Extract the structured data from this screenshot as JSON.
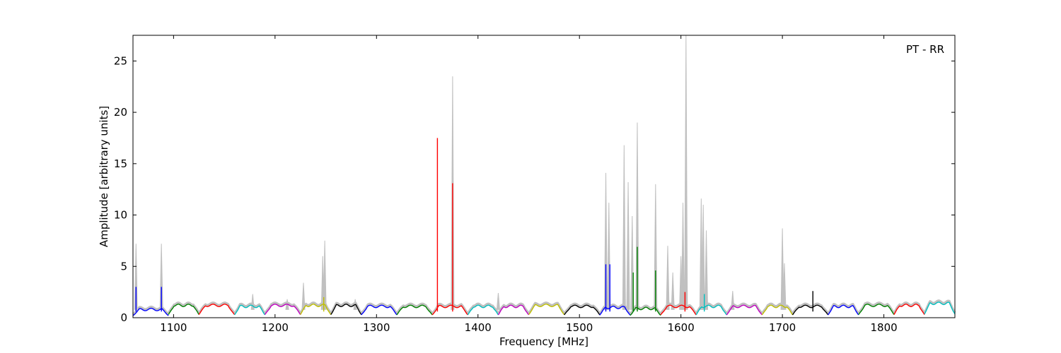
{
  "chart_data": {
    "type": "line",
    "title": "",
    "annotation": "PT - RR",
    "xlabel": "Frequency [MHz]",
    "ylabel": "Amplitude [arbitrary units]",
    "xlim": [
      1060,
      1870
    ],
    "ylim": [
      0,
      27.5
    ],
    "xticks": [
      1100,
      1200,
      1300,
      1400,
      1500,
      1600,
      1700,
      1800
    ],
    "yticks": [
      0,
      5,
      10,
      15,
      20,
      25
    ],
    "grid": false,
    "background_color": "#c0c0c0",
    "background_peaks": [
      [
        1063,
        7.2
      ],
      [
        1088,
        7.2
      ],
      [
        1178,
        2.3
      ],
      [
        1212,
        1.8
      ],
      [
        1228,
        3.4
      ],
      [
        1247,
        6.0
      ],
      [
        1249,
        7.5
      ],
      [
        1279,
        1.8
      ],
      [
        1375,
        23.5
      ],
      [
        1420,
        2.4
      ],
      [
        1526,
        14.1
      ],
      [
        1529,
        11.2
      ],
      [
        1544,
        16.8
      ],
      [
        1548,
        13.2
      ],
      [
        1552,
        9.9
      ],
      [
        1557,
        19.0
      ],
      [
        1575,
        13.0
      ],
      [
        1587,
        7.0
      ],
      [
        1592,
        4.4
      ],
      [
        1600,
        6.0
      ],
      [
        1602,
        11.2
      ],
      [
        1605,
        27.5
      ],
      [
        1620,
        11.6
      ],
      [
        1622,
        11.0
      ],
      [
        1625,
        8.5
      ],
      [
        1651,
        2.6
      ],
      [
        1700,
        8.7
      ],
      [
        1702,
        5.3
      ]
    ],
    "bands": [
      {
        "color": "#0000ff",
        "range": [
          1060,
          1095
        ],
        "base": 0.8,
        "spikes": [
          [
            1063,
            3.0
          ],
          [
            1088,
            3.0
          ]
        ]
      },
      {
        "color": "#008000",
        "range": [
          1095,
          1125
        ],
        "base": 1.2,
        "spikes": []
      },
      {
        "color": "#ff0000",
        "range": [
          1125,
          1160
        ],
        "base": 1.2,
        "spikes": []
      },
      {
        "color": "#00bfbf",
        "range": [
          1160,
          1190
        ],
        "base": 1.1,
        "spikes": []
      },
      {
        "color": "#bf00bf",
        "range": [
          1190,
          1225
        ],
        "base": 1.2,
        "spikes": []
      },
      {
        "color": "#bfbf00",
        "range": [
          1225,
          1255
        ],
        "base": 1.2,
        "spikes": [
          [
            1248,
            2.0
          ]
        ]
      },
      {
        "color": "#000000",
        "range": [
          1255,
          1285
        ],
        "base": 1.2,
        "spikes": []
      },
      {
        "color": "#0000ff",
        "range": [
          1285,
          1320
        ],
        "base": 1.1,
        "spikes": []
      },
      {
        "color": "#008000",
        "range": [
          1320,
          1355
        ],
        "base": 1.1,
        "spikes": []
      },
      {
        "color": "#ff0000",
        "range": [
          1355,
          1390
        ],
        "base": 1.1,
        "spikes": [
          [
            1360,
            17.5
          ],
          [
            1375,
            13.1
          ]
        ]
      },
      {
        "color": "#00bfbf",
        "range": [
          1390,
          1420
        ],
        "base": 1.1,
        "spikes": []
      },
      {
        "color": "#bf00bf",
        "range": [
          1420,
          1450
        ],
        "base": 1.1,
        "spikes": []
      },
      {
        "color": "#bfbf00",
        "range": [
          1450,
          1485
        ],
        "base": 1.2,
        "spikes": []
      },
      {
        "color": "#000000",
        "range": [
          1485,
          1520
        ],
        "base": 1.1,
        "spikes": []
      },
      {
        "color": "#0000ff",
        "range": [
          1520,
          1550
        ],
        "base": 1.0,
        "spikes": [
          [
            1526,
            5.2
          ],
          [
            1530,
            5.2
          ]
        ]
      },
      {
        "color": "#008000",
        "range": [
          1550,
          1580
        ],
        "base": 0.9,
        "spikes": [
          [
            1553,
            4.4
          ],
          [
            1557,
            6.9
          ],
          [
            1575,
            4.6
          ]
        ]
      },
      {
        "color": "#ff0000",
        "range": [
          1580,
          1615
        ],
        "base": 1.1,
        "spikes": [
          [
            1604,
            2.5
          ]
        ]
      },
      {
        "color": "#00bfbf",
        "range": [
          1615,
          1645
        ],
        "base": 1.1,
        "spikes": [
          [
            1623,
            2.3
          ]
        ]
      },
      {
        "color": "#bf00bf",
        "range": [
          1645,
          1680
        ],
        "base": 1.1,
        "spikes": []
      },
      {
        "color": "#bfbf00",
        "range": [
          1680,
          1710
        ],
        "base": 1.1,
        "spikes": []
      },
      {
        "color": "#000000",
        "range": [
          1710,
          1745
        ],
        "base": 1.1,
        "spikes": [
          [
            1730,
            2.6
          ]
        ]
      },
      {
        "color": "#0000ff",
        "range": [
          1745,
          1775
        ],
        "base": 1.1,
        "spikes": []
      },
      {
        "color": "#008000",
        "range": [
          1775,
          1810
        ],
        "base": 1.2,
        "spikes": []
      },
      {
        "color": "#ff0000",
        "range": [
          1810,
          1840
        ],
        "base": 1.2,
        "spikes": []
      },
      {
        "color": "#00bfbf",
        "range": [
          1840,
          1870
        ],
        "base": 1.4,
        "spikes": []
      }
    ]
  }
}
